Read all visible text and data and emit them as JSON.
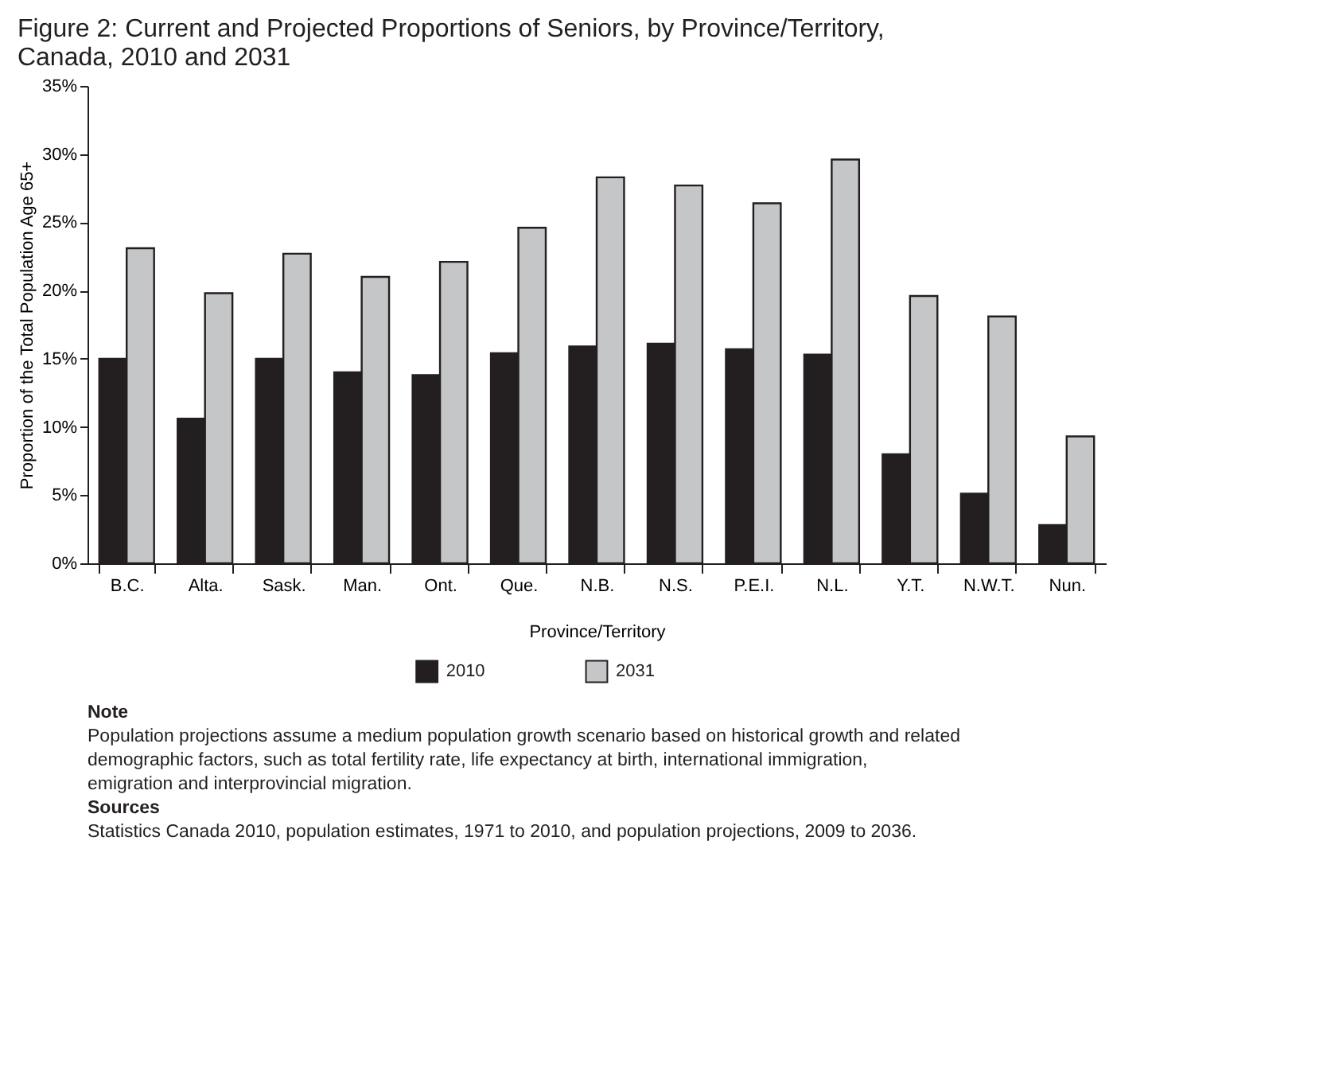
{
  "chart_data": {
    "type": "bar",
    "title": "Figure 2: Current and Projected Proportions of Seniors, by Province/Territory, Canada, 2010 and 2031",
    "xlabel": "Province/Territory",
    "ylabel": "Proportion of the Total Population Age 65+",
    "categories": [
      "B.C.",
      "Alta.",
      "Sask.",
      "Man.",
      "Ont.",
      "Que.",
      "N.B.",
      "N.S.",
      "P.E.I.",
      "N.L.",
      "Y.T.",
      "N.W.T.",
      "Nun."
    ],
    "series": [
      {
        "name": "2010",
        "color": "#231f20",
        "values": [
          15,
          10.6,
          15,
          14,
          13.8,
          15.4,
          15.9,
          16.1,
          15.7,
          15.3,
          8,
          5.1,
          2.8
        ]
      },
      {
        "name": "2031",
        "color": "#c4c6c8",
        "values": [
          23.1,
          19.8,
          22.7,
          21,
          22.1,
          24.6,
          28.3,
          27.7,
          26.4,
          29.6,
          19.6,
          18.1,
          9.3
        ]
      }
    ],
    "ylim": [
      0,
      35
    ],
    "yticks": [
      {
        "value": 0,
        "label": "0%"
      },
      {
        "value": 5,
        "label": "5%"
      },
      {
        "value": 10,
        "label": "10%"
      },
      {
        "value": 15,
        "label": "15%"
      },
      {
        "value": 20,
        "label": "20%"
      },
      {
        "value": 25,
        "label": "25%"
      },
      {
        "value": 30,
        "label": "30%"
      },
      {
        "value": 35,
        "label": "35%"
      }
    ],
    "grid": false,
    "legend": "bottom",
    "annotations": [
      "Note",
      "Population projections assume a medium population growth scenario based on historical growth and related demographic factors, such as total fertility rate, life expectancy at birth, international immigration, emigration and interprovincial migration.",
      "Sources",
      "Statistics Canada 2010, population estimates, 1971 to 2010, and population projections, 2009 to 2036."
    ]
  }
}
